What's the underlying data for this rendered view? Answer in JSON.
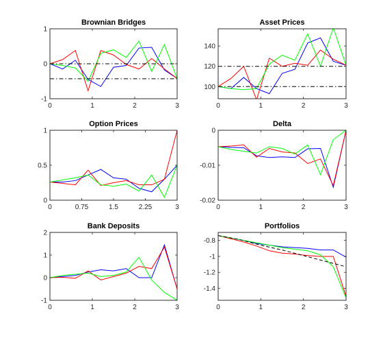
{
  "colors": {
    "blue": "#0000ff",
    "red": "#ff0000",
    "green": "#00ff00",
    "black": "#000000"
  },
  "chart_data": [
    {
      "type": "line",
      "title": "Brownian Bridges",
      "xlim": [
        0,
        3
      ],
      "ylim": [
        -1,
        1
      ],
      "xticks": [
        0,
        1,
        2,
        3
      ],
      "xtick_labels": [
        "0",
        "1",
        "2",
        "3"
      ],
      "yticks": [
        -1,
        0,
        1
      ],
      "ytick_labels": [
        "-1",
        "0",
        "1"
      ],
      "series": [
        {
          "color": "#0000ff",
          "style": "solid",
          "x": [
            0,
            0.3,
            0.6,
            0.9,
            1.2,
            1.5,
            1.8,
            2.1,
            2.4,
            2.7,
            3.0
          ],
          "y": [
            0,
            -0.15,
            0.1,
            -0.45,
            -0.65,
            -0.1,
            -0.05,
            0.45,
            0.47,
            -0.18,
            -0.42
          ]
        },
        {
          "color": "#ff0000",
          "style": "solid",
          "x": [
            0,
            0.3,
            0.6,
            0.9,
            1.2,
            1.5,
            1.8,
            2.1,
            2.4,
            2.7,
            3.0
          ],
          "y": [
            0,
            0.12,
            0.38,
            -0.77,
            0.38,
            0.25,
            -0.02,
            -0.15,
            0.15,
            -0.15,
            -0.42
          ]
        },
        {
          "color": "#00ff00",
          "style": "solid",
          "x": [
            0,
            0.3,
            0.6,
            0.9,
            1.2,
            1.5,
            1.8,
            2.1,
            2.4,
            2.7,
            3.0
          ],
          "y": [
            0,
            -0.05,
            -0.12,
            -0.5,
            0.3,
            0.4,
            0.18,
            0.65,
            -0.22,
            0.55,
            -0.42
          ]
        },
        {
          "color": "#000000",
          "style": "dashdot",
          "x": [
            0,
            3
          ],
          "y": [
            0,
            0
          ]
        },
        {
          "color": "#000000",
          "style": "dashdot",
          "x": [
            0,
            3
          ],
          "y": [
            -0.43,
            -0.43
          ]
        }
      ]
    },
    {
      "type": "line",
      "title": "Asset Prices",
      "xlim": [
        0,
        3
      ],
      "ylim": [
        88,
        157
      ],
      "xticks": [
        0,
        1,
        2,
        3
      ],
      "xtick_labels": [
        "0",
        "1",
        "2",
        "3"
      ],
      "yticks": [
        100,
        120,
        140
      ],
      "ytick_labels": [
        "100",
        "120",
        "140"
      ],
      "series": [
        {
          "color": "#0000ff",
          "style": "solid",
          "x": [
            0,
            0.3,
            0.6,
            0.9,
            1.2,
            1.5,
            1.8,
            2.1,
            2.4,
            2.7,
            3.0
          ],
          "y": [
            100,
            98,
            109,
            98,
            93,
            113,
            117,
            143,
            148,
            125,
            121
          ]
        },
        {
          "color": "#ff0000",
          "style": "solid",
          "x": [
            0,
            0.3,
            0.6,
            0.9,
            1.2,
            1.5,
            1.8,
            2.1,
            2.4,
            2.7,
            3.0
          ],
          "y": [
            100,
            108,
            120,
            87,
            128,
            120,
            123,
            121,
            136,
            127,
            121
          ]
        },
        {
          "color": "#00ff00",
          "style": "solid",
          "x": [
            0,
            0.3,
            0.6,
            0.9,
            1.2,
            1.5,
            1.8,
            2.1,
            2.4,
            2.7,
            3.0
          ],
          "y": [
            100,
            98,
            97,
            98,
            122,
            131,
            126,
            152,
            120,
            158,
            121
          ]
        },
        {
          "color": "#000000",
          "style": "dashdot",
          "x": [
            0,
            3
          ],
          "y": [
            100,
            100
          ]
        },
        {
          "color": "#000000",
          "style": "dashdot",
          "x": [
            0,
            3
          ],
          "y": [
            120,
            120
          ]
        }
      ]
    },
    {
      "type": "line",
      "title": "Option Prices",
      "xlim": [
        0,
        3
      ],
      "ylim": [
        0,
        1
      ],
      "xticks": [
        0,
        0.75,
        1.5,
        2.25,
        3
      ],
      "xtick_labels": [
        "0",
        "0.75",
        "1.5",
        "2.25",
        "3"
      ],
      "yticks": [
        0,
        0.5,
        1
      ],
      "ytick_labels": [
        "0",
        "0.5",
        "1"
      ],
      "series": [
        {
          "color": "#0000ff",
          "style": "solid",
          "x": [
            0,
            0.3,
            0.6,
            0.9,
            1.2,
            1.5,
            1.8,
            2.1,
            2.4,
            2.7,
            3.0
          ],
          "y": [
            0.26,
            0.26,
            0.28,
            0.36,
            0.44,
            0.32,
            0.3,
            0.17,
            0.12,
            0.3,
            0.5
          ]
        },
        {
          "color": "#ff0000",
          "style": "solid",
          "x": [
            0,
            0.3,
            0.6,
            0.9,
            1.2,
            1.5,
            1.8,
            2.1,
            2.4,
            2.7,
            3.0
          ],
          "y": [
            0.26,
            0.24,
            0.22,
            0.43,
            0.21,
            0.25,
            0.28,
            0.22,
            0.22,
            0.3,
            1.0
          ]
        },
        {
          "color": "#00ff00",
          "style": "solid",
          "x": [
            0,
            0.3,
            0.6,
            0.9,
            1.2,
            1.5,
            1.8,
            2.1,
            2.4,
            2.7,
            3.0
          ],
          "y": [
            0.26,
            0.29,
            0.32,
            0.36,
            0.22,
            0.2,
            0.23,
            0.13,
            0.36,
            0.04,
            0.5
          ]
        }
      ]
    },
    {
      "type": "line",
      "title": "Delta",
      "xlim": [
        0,
        3
      ],
      "ylim": [
        -0.02,
        0
      ],
      "xticks": [
        0,
        1,
        2,
        3
      ],
      "xtick_labels": [
        "0",
        "1",
        "2",
        "3"
      ],
      "yticks": [
        -0.02,
        -0.01,
        0
      ],
      "ytick_labels": [
        "-0.02",
        "-0.01",
        "0"
      ],
      "series": [
        {
          "color": "#0000ff",
          "style": "solid",
          "x": [
            0,
            0.3,
            0.6,
            0.9,
            1.2,
            1.5,
            1.8,
            2.1,
            2.4,
            2.7,
            3.0
          ],
          "y": [
            -0.0047,
            -0.0049,
            -0.005,
            -0.0073,
            -0.0078,
            -0.0076,
            -0.0078,
            -0.0053,
            -0.0052,
            -0.0163,
            0
          ]
        },
        {
          "color": "#ff0000",
          "style": "solid",
          "x": [
            0,
            0.3,
            0.6,
            0.9,
            1.2,
            1.5,
            1.8,
            2.1,
            2.4,
            2.7,
            3.0
          ],
          "y": [
            -0.0047,
            -0.0045,
            -0.0042,
            -0.0077,
            -0.0052,
            -0.0062,
            -0.0065,
            -0.0095,
            -0.0082,
            -0.0158,
            0
          ]
        },
        {
          "color": "#00ff00",
          "style": "solid",
          "x": [
            0,
            0.3,
            0.6,
            0.9,
            1.2,
            1.5,
            1.8,
            2.1,
            2.4,
            2.7,
            3.0
          ],
          "y": [
            -0.0047,
            -0.0055,
            -0.006,
            -0.0065,
            -0.0047,
            -0.0052,
            -0.0068,
            -0.0042,
            -0.0127,
            -0.0027,
            0
          ]
        }
      ]
    },
    {
      "type": "line",
      "title": "Bank Deposits",
      "xlim": [
        0,
        3
      ],
      "ylim": [
        -1,
        2
      ],
      "xticks": [
        0,
        1,
        2,
        3
      ],
      "xtick_labels": [
        "0",
        "1",
        "2",
        "3"
      ],
      "yticks": [
        -1,
        0,
        1,
        2
      ],
      "ytick_labels": [
        "-1",
        "0",
        "1",
        "2"
      ],
      "series": [
        {
          "color": "#0000ff",
          "style": "solid",
          "x": [
            0,
            0.3,
            0.6,
            0.9,
            1.2,
            1.5,
            1.8,
            2.1,
            2.4,
            2.7,
            3.0
          ],
          "y": [
            0,
            0.05,
            0.1,
            0.25,
            0.35,
            0.3,
            0.4,
            0.0,
            0.0,
            1.45,
            -0.5
          ]
        },
        {
          "color": "#ff0000",
          "style": "solid",
          "x": [
            0,
            0.3,
            0.6,
            0.9,
            1.2,
            1.5,
            1.8,
            2.1,
            2.4,
            2.7,
            3.0
          ],
          "y": [
            0,
            0.02,
            -0.03,
            0.3,
            -0.1,
            0.05,
            0.2,
            0.5,
            0.4,
            1.35,
            -0.5
          ]
        },
        {
          "color": "#00ff00",
          "style": "solid",
          "x": [
            0,
            0.3,
            0.6,
            0.9,
            1.2,
            1.5,
            1.8,
            2.1,
            2.4,
            2.7,
            3.0
          ],
          "y": [
            0,
            0.1,
            0.15,
            0.2,
            0.05,
            0.1,
            0.25,
            0.9,
            -0.1,
            -0.65,
            -1.0
          ]
        }
      ]
    },
    {
      "type": "line",
      "title": "Portfolios",
      "xlim": [
        0,
        3
      ],
      "ylim": [
        -1.55,
        -0.7
      ],
      "xticks": [
        0,
        1,
        2,
        3
      ],
      "xtick_labels": [
        "0",
        "1",
        "2",
        "3"
      ],
      "yticks": [
        -1.4,
        -1.2,
        -1,
        -0.8
      ],
      "ytick_labels": [
        "-1.4",
        "-1.2",
        "-1",
        "-0.8"
      ],
      "series": [
        {
          "color": "#0000ff",
          "style": "solid",
          "x": [
            0,
            0.3,
            0.6,
            0.9,
            1.2,
            1.5,
            1.8,
            2.1,
            2.4,
            2.7,
            3.0
          ],
          "y": [
            -0.74,
            -0.77,
            -0.8,
            -0.84,
            -0.86,
            -0.88,
            -0.89,
            -0.9,
            -0.92,
            -0.92,
            -1.01
          ]
        },
        {
          "color": "#ff0000",
          "style": "solid",
          "x": [
            0,
            0.3,
            0.6,
            0.9,
            1.2,
            1.5,
            1.8,
            2.1,
            2.4,
            2.7,
            3.0
          ],
          "y": [
            -0.74,
            -0.78,
            -0.82,
            -0.87,
            -0.93,
            -0.96,
            -0.97,
            -0.99,
            -1.0,
            -1.0,
            -1.5
          ]
        },
        {
          "color": "#00ff00",
          "style": "solid",
          "x": [
            0,
            0.3,
            0.6,
            0.9,
            1.2,
            1.5,
            1.8,
            2.1,
            2.4,
            2.7,
            3.0
          ],
          "y": [
            -0.74,
            -0.77,
            -0.8,
            -0.83,
            -0.86,
            -0.89,
            -0.91,
            -0.93,
            -0.98,
            -1.13,
            -1.52
          ]
        },
        {
          "color": "#000000",
          "style": "dashed-bold",
          "x": [
            0,
            0.5,
            1.0,
            1.5,
            2.0,
            2.5,
            3.0
          ],
          "y": [
            -0.74,
            -0.79,
            -0.86,
            -0.92,
            -0.99,
            -1.06,
            -1.13
          ]
        }
      ]
    }
  ]
}
